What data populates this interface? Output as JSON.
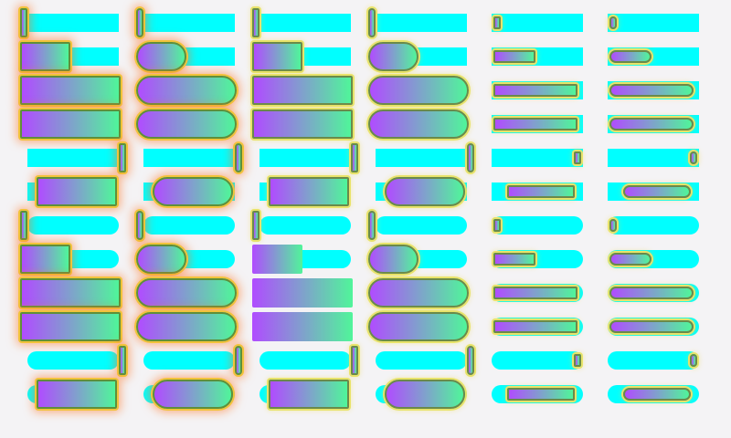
{
  "colors": {
    "track": "#00ffff",
    "gradient_start": "#b04cff",
    "gradient_end": "#50f59a",
    "background": "#f4f3f5"
  },
  "grid": {
    "columns": [
      {
        "column": 1,
        "shape": "square",
        "effect": "glow-outline"
      },
      {
        "column": 2,
        "shape": "round",
        "effect": "glow-outline"
      },
      {
        "column": 3,
        "shape": "square",
        "effect": "outline"
      },
      {
        "column": 4,
        "shape": "round",
        "effect": "outline"
      },
      {
        "column": 5,
        "shape": "square-inset",
        "effect": "thin-outline"
      },
      {
        "column": 6,
        "shape": "round-inset",
        "effect": "thin-outline"
      }
    ],
    "rows": [
      {
        "row": 1,
        "value": 0.02,
        "align": "start",
        "track": "square"
      },
      {
        "row": 2,
        "value": 0.5,
        "align": "start",
        "track": "square"
      },
      {
        "row": 3,
        "value": 1.0,
        "align": "start",
        "track": "square"
      },
      {
        "row": 4,
        "value": 1.0,
        "align": "full",
        "track": "square"
      },
      {
        "row": 5,
        "value": 0.02,
        "align": "end",
        "track": "square"
      },
      {
        "row": 6,
        "value": 0.8,
        "align": "center",
        "track": "square"
      },
      {
        "row": 7,
        "value": 0.02,
        "align": "start",
        "track": "round"
      },
      {
        "row": 8,
        "value": 0.5,
        "align": "start",
        "track": "round"
      },
      {
        "row": 9,
        "value": 1.0,
        "align": "start",
        "track": "round"
      },
      {
        "row": 10,
        "value": 1.0,
        "align": "full",
        "track": "round"
      },
      {
        "row": 11,
        "value": 0.02,
        "align": "end",
        "track": "round"
      },
      {
        "row": 12,
        "value": 0.8,
        "align": "center",
        "track": "round"
      }
    ]
  }
}
